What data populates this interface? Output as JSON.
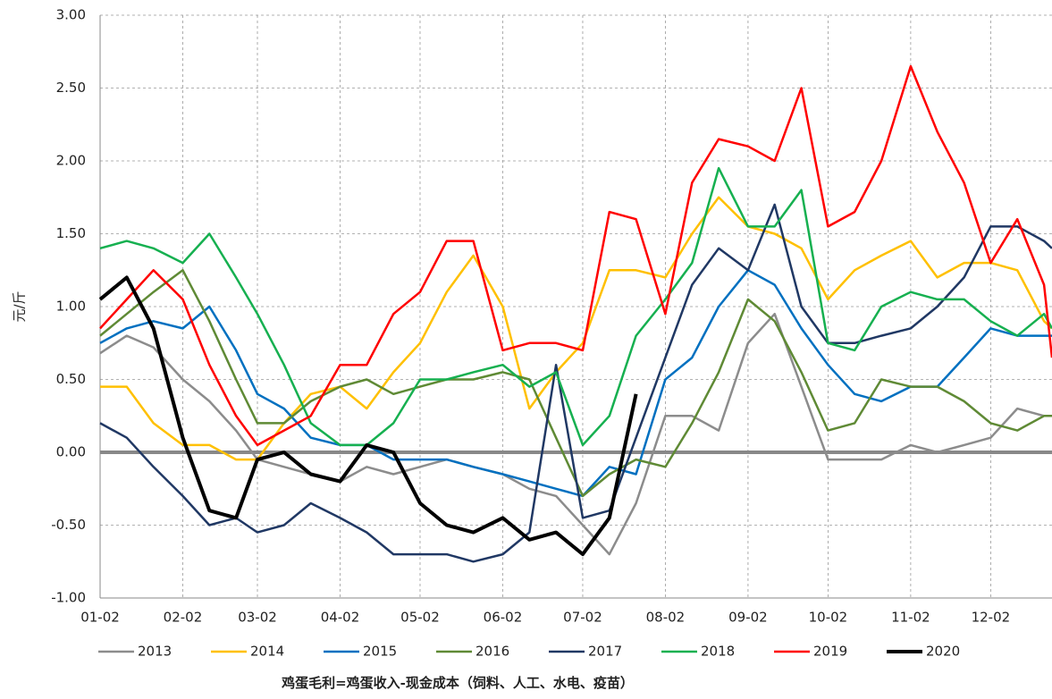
{
  "chart_data": {
    "type": "line",
    "y_label": "元/斤",
    "caption": "鸡蛋毛利=鸡蛋收入-现金成本（饲料、人工、水电、疫苗）",
    "x": [
      1,
      11,
      21,
      32,
      42,
      52,
      60,
      70,
      80,
      91,
      101,
      111,
      121,
      131,
      141,
      152,
      162,
      172,
      182,
      192,
      202,
      213,
      223,
      233,
      244,
      254,
      264,
      274,
      284,
      294,
      305,
      315,
      325,
      335,
      345,
      355,
      358
    ],
    "xlim": [
      1,
      358
    ],
    "xticks": [
      {
        "value": 1,
        "label": "01-02"
      },
      {
        "value": 32,
        "label": "02-02"
      },
      {
        "value": 60,
        "label": "03-02"
      },
      {
        "value": 91,
        "label": "04-02"
      },
      {
        "value": 121,
        "label": "05-02"
      },
      {
        "value": 152,
        "label": "06-02"
      },
      {
        "value": 182,
        "label": "07-02"
      },
      {
        "value": 213,
        "label": "08-02"
      },
      {
        "value": 244,
        "label": "09-02"
      },
      {
        "value": 274,
        "label": "10-02"
      },
      {
        "value": 305,
        "label": "11-02"
      },
      {
        "value": 335,
        "label": "12-02"
      }
    ],
    "ylim": [
      -1,
      3
    ],
    "yticks": [
      {
        "value": -1,
        "label": "-1.00"
      },
      {
        "value": -0.5,
        "label": "-0.50"
      },
      {
        "value": 0,
        "label": "0.00"
      },
      {
        "value": 0.5,
        "label": "0.50"
      },
      {
        "value": 1,
        "label": "1.00"
      },
      {
        "value": 1.5,
        "label": "1.50"
      },
      {
        "value": 2,
        "label": "2.00"
      },
      {
        "value": 2.5,
        "label": "2.50"
      },
      {
        "value": 3,
        "label": "3.00"
      }
    ],
    "grid": true,
    "series": [
      {
        "name": "2013",
        "color": "#8c8c8c",
        "width": 2.5,
        "values": [
          0.68,
          0.8,
          0.72,
          0.5,
          0.35,
          0.15,
          -0.05,
          -0.1,
          -0.15,
          -0.2,
          -0.1,
          -0.15,
          -0.1,
          -0.05,
          -0.1,
          -0.15,
          -0.25,
          -0.3,
          -0.5,
          -0.7,
          -0.35,
          0.25,
          0.25,
          0.15,
          0.75,
          0.95,
          0.45,
          -0.05,
          -0.05,
          -0.05,
          0.05,
          0,
          0.05,
          0.1,
          0.3,
          0.25,
          0.25
        ]
      },
      {
        "name": "2014",
        "color": "#ffc000",
        "width": 2.5,
        "values": [
          0.45,
          0.45,
          0.2,
          0.05,
          0.05,
          -0.05,
          -0.05,
          0.2,
          0.4,
          0.45,
          0.3,
          0.55,
          0.75,
          1.1,
          1.35,
          1.0,
          0.3,
          0.55,
          0.75,
          1.25,
          1.25,
          1.2,
          1.5,
          1.75,
          1.55,
          1.5,
          1.4,
          1.05,
          1.25,
          1.35,
          1.45,
          1.2,
          1.3,
          1.3,
          1.25,
          0.9,
          0.85
        ]
      },
      {
        "name": "2015",
        "color": "#0070c0",
        "width": 2.5,
        "values": [
          0.75,
          0.85,
          0.9,
          0.85,
          1.0,
          0.7,
          0.4,
          0.3,
          0.1,
          0.05,
          0.05,
          -0.05,
          -0.05,
          -0.05,
          -0.1,
          -0.15,
          -0.2,
          -0.25,
          -0.3,
          -0.1,
          -0.15,
          0.5,
          0.65,
          1.0,
          1.25,
          1.15,
          0.85,
          0.6,
          0.4,
          0.35,
          0.45,
          0.45,
          0.65,
          0.85,
          0.8,
          0.8,
          0.8
        ]
      },
      {
        "name": "2016",
        "color": "#5f8a35",
        "width": 2.5,
        "values": [
          0.8,
          0.95,
          1.1,
          1.25,
          0.9,
          0.5,
          0.2,
          0.2,
          0.35,
          0.45,
          0.5,
          0.4,
          0.45,
          0.5,
          0.5,
          0.55,
          0.5,
          0.1,
          -0.3,
          -0.15,
          -0.05,
          -0.1,
          0.2,
          0.55,
          1.05,
          0.9,
          0.55,
          0.15,
          0.2,
          0.5,
          0.45,
          0.45,
          0.35,
          0.2,
          0.15,
          0.25,
          0.25
        ]
      },
      {
        "name": "2017",
        "color": "#203864",
        "width": 2.5,
        "values": [
          0.2,
          0.1,
          -0.1,
          -0.3,
          -0.5,
          -0.45,
          -0.55,
          -0.5,
          -0.35,
          -0.45,
          -0.55,
          -0.7,
          -0.7,
          -0.7,
          -0.75,
          -0.7,
          -0.55,
          0.6,
          -0.45,
          -0.4,
          0.1,
          0.65,
          1.15,
          1.4,
          1.25,
          1.7,
          1.0,
          0.75,
          0.75,
          0.8,
          0.85,
          1.0,
          1.2,
          1.55,
          1.55,
          1.45,
          1.4
        ]
      },
      {
        "name": "2018",
        "color": "#16b050",
        "width": 2.5,
        "values": [
          1.4,
          1.45,
          1.4,
          1.3,
          1.5,
          1.2,
          0.95,
          0.6,
          0.2,
          0.05,
          0.05,
          0.2,
          0.5,
          0.5,
          0.55,
          0.6,
          0.45,
          0.55,
          0.05,
          0.25,
          0.8,
          1.05,
          1.3,
          1.95,
          1.55,
          1.55,
          1.8,
          0.75,
          0.7,
          1.0,
          1.1,
          1.05,
          1.05,
          0.9,
          0.8,
          0.95,
          0.85
        ]
      },
      {
        "name": "2019",
        "color": "#ff0000",
        "width": 2.5,
        "values": [
          0.85,
          1.05,
          1.25,
          1.05,
          0.6,
          0.25,
          0.05,
          0.15,
          0.25,
          0.6,
          0.6,
          0.95,
          1.1,
          1.45,
          1.45,
          0.7,
          0.75,
          0.75,
          0.7,
          1.65,
          1.6,
          0.95,
          1.85,
          2.15,
          2.1,
          2.0,
          2.5,
          1.55,
          1.65,
          2.0,
          2.65,
          2.2,
          1.85,
          1.3,
          1.6,
          1.15,
          0.65
        ]
      },
      {
        "name": "2020",
        "color": "#000000",
        "width": 4,
        "values": [
          1.05,
          1.2,
          0.85,
          0.1,
          -0.4,
          -0.45,
          -0.05,
          0,
          -0.15,
          -0.2,
          0.05,
          0,
          -0.35,
          -0.5,
          -0.55,
          -0.45,
          -0.6,
          -0.55,
          -0.7,
          -0.45,
          0.4,
          null,
          null,
          null,
          null,
          null,
          null,
          null,
          null,
          null,
          null,
          null,
          null,
          null,
          null,
          null,
          null
        ]
      }
    ]
  }
}
